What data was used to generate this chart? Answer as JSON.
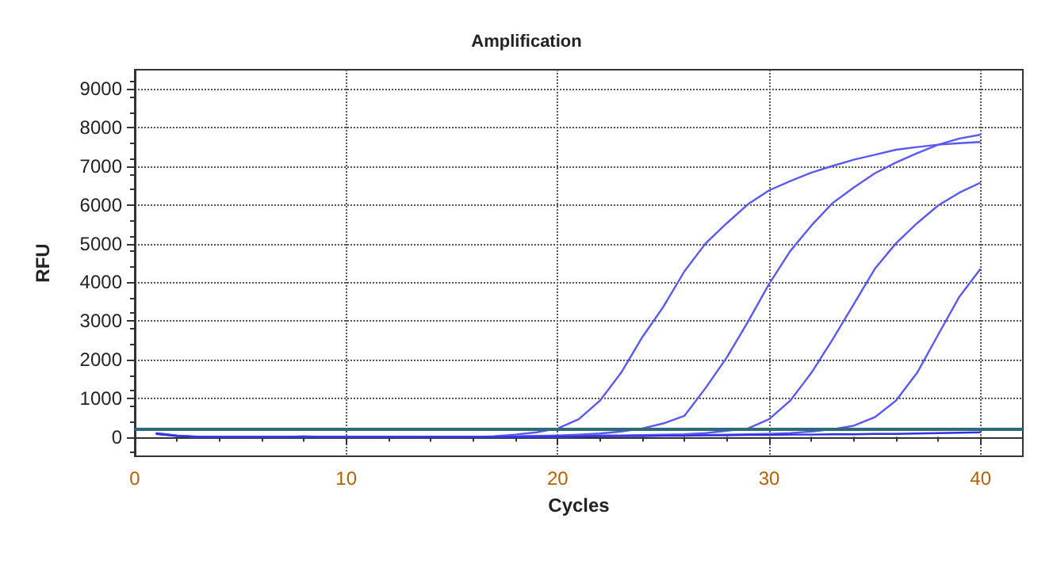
{
  "chart_data": {
    "type": "line",
    "title": "Amplification",
    "xlabel": "Cycles",
    "ylabel": "RFU",
    "x": [
      1,
      2,
      3,
      4,
      5,
      6,
      7,
      8,
      9,
      10,
      11,
      12,
      13,
      14,
      15,
      16,
      17,
      18,
      19,
      20,
      21,
      22,
      23,
      24,
      25,
      26,
      27,
      28,
      29,
      30,
      31,
      32,
      33,
      34,
      35,
      36,
      37,
      38,
      39,
      40
    ],
    "series": [
      {
        "color": "#5a5af0",
        "values": [
          100,
          40,
          10,
          0,
          0,
          0,
          0,
          20,
          0,
          0,
          0,
          0,
          0,
          10,
          0,
          0,
          20,
          60,
          120,
          220,
          460,
          940,
          1660,
          2580,
          3370,
          4290,
          5010,
          5530,
          6020,
          6380,
          6620,
          6840,
          7010,
          7170,
          7300,
          7430,
          7500,
          7560,
          7600,
          7630
        ]
      },
      {
        "color": "#5a5af0",
        "values": [
          90,
          30,
          0,
          0,
          0,
          0,
          0,
          10,
          0,
          0,
          0,
          0,
          0,
          0,
          0,
          0,
          10,
          20,
          30,
          40,
          60,
          90,
          140,
          220,
          350,
          550,
          1270,
          2060,
          2980,
          3960,
          4810,
          5470,
          6050,
          6450,
          6820,
          7100,
          7340,
          7560,
          7720,
          7820
        ]
      },
      {
        "color": "#5a5af0",
        "values": [
          90,
          30,
          0,
          0,
          0,
          0,
          0,
          0,
          0,
          0,
          0,
          0,
          0,
          0,
          0,
          0,
          0,
          10,
          20,
          30,
          30,
          40,
          40,
          50,
          60,
          70,
          100,
          160,
          220,
          460,
          940,
          1660,
          2520,
          3430,
          4350,
          5010,
          5530,
          5990,
          6320,
          6580
        ]
      },
      {
        "color": "#5a5af0",
        "values": [
          90,
          30,
          0,
          0,
          0,
          0,
          0,
          0,
          0,
          0,
          0,
          0,
          0,
          0,
          0,
          0,
          0,
          0,
          0,
          0,
          10,
          20,
          30,
          40,
          40,
          50,
          50,
          60,
          70,
          80,
          100,
          140,
          200,
          290,
          510,
          940,
          1660,
          2650,
          3630,
          4350
        ]
      },
      {
        "color": "#3030e0",
        "values": [
          80,
          20,
          0,
          0,
          0,
          0,
          0,
          0,
          0,
          0,
          0,
          0,
          0,
          0,
          0,
          0,
          0,
          0,
          0,
          10,
          10,
          20,
          20,
          20,
          30,
          30,
          40,
          40,
          50,
          50,
          60,
          60,
          70,
          70,
          80,
          80,
          90,
          100,
          110,
          120
        ]
      }
    ],
    "xlim": [
      0,
      42
    ],
    "xticks": [
      0,
      10,
      20,
      30,
      40
    ],
    "ylim": [
      -500,
      9500
    ],
    "yticks": [
      0,
      1000,
      2000,
      3000,
      4000,
      5000,
      6000,
      7000,
      8000,
      9000
    ],
    "ref_lines": [
      {
        "axis": "y",
        "value": 200,
        "color": "#2e6b7a"
      }
    ],
    "grid": true,
    "marker": "none",
    "line_style": "solid"
  }
}
